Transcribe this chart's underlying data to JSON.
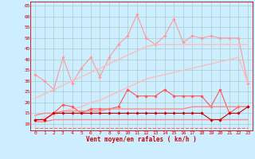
{
  "bg_color": "#cceeff",
  "grid_color": "#aacccc",
  "xlabel": "Vent moyen/en rafales ( kn/h )",
  "ylim": [
    7,
    67
  ],
  "yticks": [
    10,
    15,
    20,
    25,
    30,
    35,
    40,
    45,
    50,
    55,
    60,
    65
  ],
  "xticks": [
    0,
    1,
    2,
    3,
    4,
    5,
    6,
    7,
    8,
    9,
    10,
    11,
    12,
    13,
    14,
    15,
    16,
    17,
    18,
    19,
    20,
    21,
    22,
    23
  ],
  "x": [
    0,
    1,
    2,
    3,
    4,
    5,
    6,
    7,
    8,
    9,
    10,
    11,
    12,
    13,
    14,
    15,
    16,
    17,
    18,
    19,
    20,
    21,
    22,
    23
  ],
  "series": [
    {
      "name": "rafales_max",
      "color": "#ff9999",
      "lw": 0.8,
      "marker": "D",
      "ms": 1.8,
      "dashed": false,
      "values": [
        33,
        30,
        26,
        41,
        29,
        36,
        41,
        32,
        41,
        47,
        51,
        61,
        50,
        47,
        51,
        59,
        48,
        51,
        50,
        51,
        50,
        50,
        50,
        29
      ]
    },
    {
      "name": "trend_upper_high",
      "color": "#ffbbbb",
      "lw": 1.0,
      "marker": null,
      "ms": 0,
      "dashed": false,
      "values": [
        22,
        24,
        26,
        28,
        30,
        32,
        34,
        36,
        38,
        40,
        42,
        44,
        46,
        47,
        47,
        47,
        47,
        47,
        47,
        47,
        47,
        47,
        47,
        47
      ]
    },
    {
      "name": "trend_upper_low",
      "color": "#ffbbbb",
      "lw": 1.0,
      "marker": null,
      "ms": 0,
      "dashed": false,
      "values": [
        11,
        13,
        14,
        16,
        17,
        18,
        20,
        21,
        23,
        25,
        27,
        29,
        31,
        32,
        33,
        34,
        35,
        36,
        37,
        38,
        39,
        40,
        41,
        29
      ]
    },
    {
      "name": "vent_moyen_max",
      "color": "#ff5555",
      "lw": 0.8,
      "marker": "D",
      "ms": 1.8,
      "dashed": false,
      "values": [
        12,
        12,
        15,
        19,
        18,
        15,
        17,
        17,
        17,
        18,
        26,
        23,
        23,
        23,
        26,
        23,
        23,
        23,
        23,
        18,
        26,
        15,
        18,
        18
      ]
    },
    {
      "name": "trend_lower_high",
      "color": "#ff8888",
      "lw": 1.0,
      "marker": null,
      "ms": 0,
      "dashed": false,
      "values": [
        14,
        15,
        15,
        16,
        16,
        16,
        16,
        16,
        17,
        17,
        17,
        17,
        17,
        17,
        17,
        17,
        17,
        18,
        18,
        18,
        18,
        18,
        18,
        18
      ]
    },
    {
      "name": "trend_lower_low",
      "color": "#ff8888",
      "lw": 1.0,
      "marker": null,
      "ms": 0,
      "dashed": false,
      "values": [
        11,
        11,
        12,
        12,
        12,
        12,
        12,
        12,
        12,
        12,
        12,
        12,
        12,
        12,
        12,
        12,
        12,
        12,
        12,
        12,
        12,
        12,
        12,
        12
      ]
    },
    {
      "name": "vent_min",
      "color": "#cc0000",
      "lw": 0.8,
      "marker": "D",
      "ms": 1.8,
      "dashed": false,
      "values": [
        12,
        12,
        15,
        15,
        15,
        15,
        15,
        15,
        15,
        15,
        15,
        15,
        15,
        15,
        15,
        15,
        15,
        15,
        15,
        12,
        12,
        15,
        15,
        18
      ]
    },
    {
      "name": "dashed_bottom",
      "color": "#ff6666",
      "lw": 0.8,
      "marker": null,
      "ms": 0,
      "dashed": true,
      "values": [
        8,
        8,
        8,
        8,
        8,
        8,
        8,
        8,
        8,
        8,
        8,
        8,
        8,
        8,
        8,
        8,
        8,
        8,
        8,
        8,
        8,
        8,
        8,
        8
      ]
    }
  ]
}
